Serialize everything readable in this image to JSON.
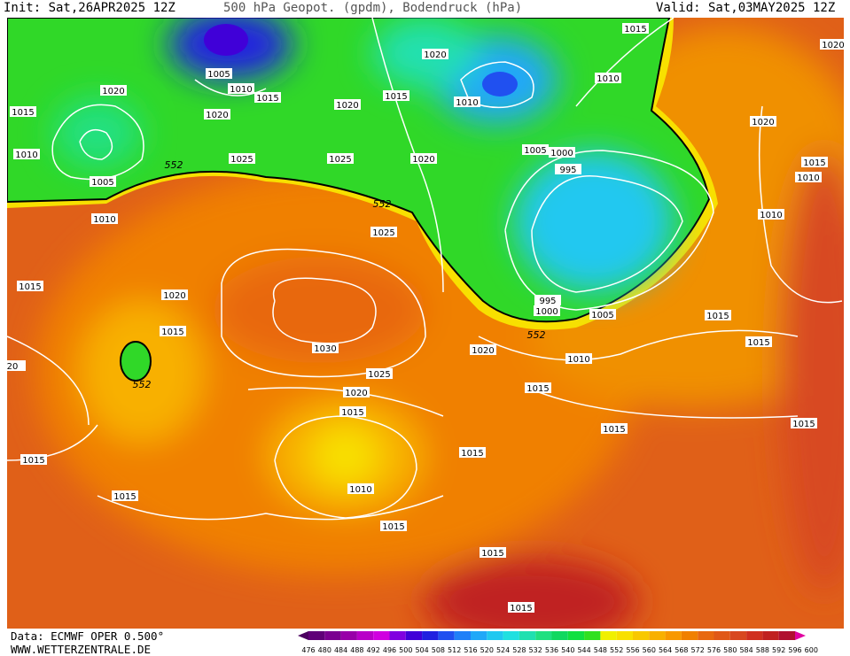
{
  "header": {
    "init": "Init: Sat,26APR2025 12Z",
    "title": "500 hPa Geopot. (gpdm), Bodendruck (hPa)",
    "valid": "Valid: Sat,03MAY2025 12Z"
  },
  "footer": {
    "source": "Data: ECMWF OPER 0.500°",
    "site": "WWW.WETTERZENTRALE.DE"
  },
  "isobar_labels": [
    1015,
    1020,
    1005,
    1020,
    1010,
    1015,
    1010,
    1020,
    1015,
    1020,
    1015,
    1020,
    1010,
    1020,
    1010,
    1005,
    1025,
    1025,
    1020,
    1005,
    1000,
    995,
    1015,
    1010,
    1010,
    1010,
    1025,
    1015,
    1020,
    995,
    1000,
    1005,
    1015,
    1015,
    1030,
    1015,
    1020,
    1010,
    20,
    1025,
    1020,
    1015,
    1015,
    1015,
    1015,
    1015,
    1015,
    1010,
    1015,
    1015,
    1015,
    1015
  ],
  "geopotential_labels": [
    552,
    552,
    552,
    552
  ],
  "color_scale": {
    "values": [
      476,
      480,
      484,
      488,
      492,
      496,
      500,
      504,
      508,
      512,
      516,
      520,
      524,
      528,
      532,
      536,
      540,
      544,
      548,
      552,
      556,
      560,
      564,
      568,
      572,
      576,
      580,
      584,
      588,
      592,
      596,
      600
    ],
    "colors": [
      "#4b0060",
      "#600078",
      "#7a0090",
      "#9800a8",
      "#b800c8",
      "#d000e0",
      "#8000e0",
      "#4000d8",
      "#2020e0",
      "#2050f0",
      "#2080f8",
      "#20a8f8",
      "#20c8f0",
      "#20e0e0",
      "#20e0b0",
      "#20e080",
      "#10d860",
      "#10e040",
      "#30e020",
      "#f0f000",
      "#f8e000",
      "#f8c800",
      "#f8b000",
      "#f89800",
      "#f08000",
      "#e86810",
      "#e05818",
      "#d84820",
      "#d03020",
      "#c02020",
      "#b01030",
      "#e000a0"
    ]
  }
}
